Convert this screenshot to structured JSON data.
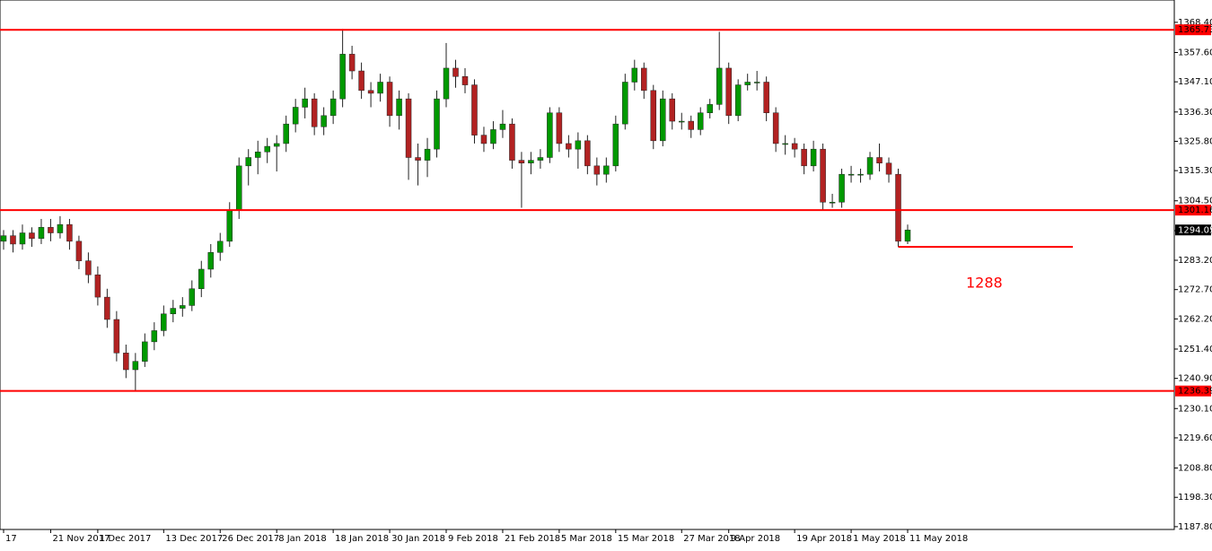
{
  "chart_data": {
    "type": "candlestick",
    "categories": [
      "17",
      null,
      null,
      null,
      null,
      "21 Nov 2017",
      null,
      null,
      null,
      null,
      "1 Dec 2017",
      null,
      null,
      null,
      null,
      null,
      null,
      "13 Dec 2017",
      null,
      null,
      null,
      null,
      null,
      "26 Dec 2017",
      null,
      null,
      null,
      null,
      null,
      "8 Jan 2018",
      null,
      null,
      null,
      null,
      null,
      "18 Jan 2018",
      null,
      null,
      null,
      null,
      null,
      "30 Jan 2018",
      null,
      null,
      null,
      null,
      null,
      "9 Feb 2018",
      null,
      null,
      null,
      null,
      null,
      "21 Feb 2018",
      null,
      null,
      null,
      null,
      null,
      "5 Mar 2018",
      null,
      null,
      null,
      null,
      null,
      "15 Mar 2018",
      null,
      null,
      null,
      null,
      null,
      null,
      "27 Mar 2018",
      null,
      null,
      null,
      null,
      "9 Apr 2018",
      null,
      null,
      null,
      null,
      null,
      null,
      "19 Apr 2018",
      null,
      null,
      null,
      null,
      null,
      "1 May 2018",
      null,
      null,
      null,
      null,
      null,
      "11 May 2018"
    ],
    "ohlc": [
      [
        1290,
        1294,
        1287,
        1292
      ],
      [
        1292,
        1294,
        1286,
        1289
      ],
      [
        1289,
        1296,
        1287,
        1293
      ],
      [
        1293,
        1295,
        1288,
        1291
      ],
      [
        1291,
        1298,
        1289,
        1295
      ],
      [
        1295,
        1298,
        1290,
        1293
      ],
      [
        1293,
        1299,
        1291,
        1296
      ],
      [
        1296,
        1298,
        1287,
        1290
      ],
      [
        1290,
        1292,
        1280,
        1283
      ],
      [
        1283,
        1286,
        1275,
        1278
      ],
      [
        1278,
        1281,
        1267,
        1270
      ],
      [
        1270,
        1273,
        1259,
        1262
      ],
      [
        1262,
        1265,
        1247,
        1250
      ],
      [
        1250,
        1253,
        1241,
        1244
      ],
      [
        1244,
        1250,
        1236.5,
        1247
      ],
      [
        1247,
        1257,
        1245,
        1254
      ],
      [
        1254,
        1261,
        1251,
        1258
      ],
      [
        1258,
        1267,
        1256,
        1264
      ],
      [
        1264,
        1269,
        1261,
        1266
      ],
      [
        1266,
        1270,
        1263,
        1267
      ],
      [
        1267,
        1276,
        1265,
        1273
      ],
      [
        1273,
        1283,
        1270,
        1280
      ],
      [
        1280,
        1289,
        1277,
        1286
      ],
      [
        1286,
        1293,
        1283,
        1290
      ],
      [
        1290,
        1304,
        1288,
        1301
      ],
      [
        1301,
        1320,
        1298,
        1317
      ],
      [
        1317,
        1323,
        1310,
        1320
      ],
      [
        1320,
        1326,
        1314,
        1322
      ],
      [
        1322,
        1327,
        1318,
        1324
      ],
      [
        1324,
        1328,
        1315,
        1325
      ],
      [
        1325,
        1335,
        1322,
        1332
      ],
      [
        1332,
        1341,
        1329,
        1338
      ],
      [
        1338,
        1345,
        1334,
        1341
      ],
      [
        1341,
        1343,
        1328,
        1331
      ],
      [
        1331,
        1338,
        1328,
        1335
      ],
      [
        1335,
        1344,
        1332,
        1341
      ],
      [
        1341,
        1366,
        1338,
        1357
      ],
      [
        1357,
        1360,
        1348,
        1351
      ],
      [
        1351,
        1354,
        1341,
        1344
      ],
      [
        1344,
        1347,
        1338,
        1343
      ],
      [
        1343,
        1350,
        1340,
        1347
      ],
      [
        1347,
        1349,
        1331,
        1335
      ],
      [
        1335,
        1344,
        1330,
        1341
      ],
      [
        1341,
        1343,
        1312,
        1320
      ],
      [
        1320,
        1325,
        1310,
        1319
      ],
      [
        1319,
        1327,
        1313,
        1323
      ],
      [
        1323,
        1344,
        1320,
        1341
      ],
      [
        1341,
        1361,
        1338,
        1352
      ],
      [
        1352,
        1355,
        1345,
        1349
      ],
      [
        1349,
        1352,
        1343,
        1346
      ],
      [
        1346,
        1348,
        1325,
        1328
      ],
      [
        1328,
        1331,
        1322,
        1325
      ],
      [
        1325,
        1333,
        1323,
        1330
      ],
      [
        1330,
        1337,
        1327,
        1332
      ],
      [
        1332,
        1334,
        1316,
        1319
      ],
      [
        1319,
        1322,
        1302,
        1318
      ],
      [
        1318,
        1322,
        1314,
        1319
      ],
      [
        1319,
        1323,
        1316,
        1320
      ],
      [
        1320,
        1338,
        1318,
        1336
      ],
      [
        1336,
        1338,
        1322,
        1325
      ],
      [
        1325,
        1328,
        1320,
        1323
      ],
      [
        1323,
        1329,
        1316,
        1326
      ],
      [
        1326,
        1328,
        1314,
        1317
      ],
      [
        1317,
        1320,
        1310,
        1314
      ],
      [
        1314,
        1320,
        1311,
        1317
      ],
      [
        1317,
        1335,
        1315,
        1332
      ],
      [
        1332,
        1350,
        1330,
        1347
      ],
      [
        1347,
        1355,
        1344,
        1352
      ],
      [
        1352,
        1354,
        1341,
        1344
      ],
      [
        1344,
        1346,
        1323,
        1326
      ],
      [
        1326,
        1344,
        1324,
        1341
      ],
      [
        1341,
        1343,
        1330,
        1333
      ],
      [
        1333,
        1336,
        1330,
        1333
      ],
      [
        1333,
        1335,
        1327,
        1330
      ],
      [
        1330,
        1338,
        1328,
        1336
      ],
      [
        1336,
        1341,
        1334,
        1339
      ],
      [
        1339,
        1365,
        1337,
        1352
      ],
      [
        1352,
        1354,
        1332,
        1335
      ],
      [
        1335,
        1348,
        1333,
        1346
      ],
      [
        1346,
        1350,
        1344,
        1347
      ],
      [
        1347,
        1351,
        1344,
        1347
      ],
      [
        1347,
        1349,
        1333,
        1336
      ],
      [
        1336,
        1338,
        1322,
        1325
      ],
      [
        1325,
        1328,
        1321,
        1325
      ],
      [
        1325,
        1327,
        1320,
        1323
      ],
      [
        1323,
        1325,
        1314,
        1317
      ],
      [
        1317,
        1326,
        1315,
        1323
      ],
      [
        1323,
        1325,
        1301,
        1304
      ],
      [
        1304,
        1307,
        1302,
        1304
      ],
      [
        1304,
        1316,
        1302,
        1314
      ],
      [
        1314,
        1317,
        1311,
        1314
      ],
      [
        1314,
        1316,
        1311,
        1314
      ],
      [
        1314,
        1322,
        1312,
        1320
      ],
      [
        1320,
        1325,
        1315,
        1318
      ],
      [
        1318,
        1320,
        1311,
        1314
      ],
      [
        1314,
        1316,
        1288,
        1290
      ],
      [
        1290,
        1296,
        1289,
        1294.05
      ]
    ],
    "up_color": "#009900",
    "down_color": "#b22222",
    "wick_color": "#222222",
    "ylim": [
      1186.8,
      1376.4
    ],
    "yticks": [
      {
        "value": 1368.4,
        "label": "1368.40"
      },
      {
        "value": 1357.6,
        "label": "1357.60"
      },
      {
        "value": 1347.1,
        "label": "1347.10"
      },
      {
        "value": 1336.3,
        "label": "1336.30"
      },
      {
        "value": 1325.8,
        "label": "1325.80"
      },
      {
        "value": 1315.3,
        "label": "1315.30"
      },
      {
        "value": 1304.5,
        "label": "1304.50"
      },
      {
        "value": 1293.8,
        "label": "1293.80"
      },
      {
        "value": 1283.2,
        "label": "1283.20"
      },
      {
        "value": 1272.7,
        "label": "1272.70"
      },
      {
        "value": 1262.2,
        "label": "1262.20"
      },
      {
        "value": 1251.4,
        "label": "1251.40"
      },
      {
        "value": 1240.9,
        "label": "1240.90"
      },
      {
        "value": 1230.1,
        "label": "1230.10"
      },
      {
        "value": 1219.6,
        "label": "1219.60"
      },
      {
        "value": 1208.8,
        "label": "1208.80"
      },
      {
        "value": 1198.3,
        "label": "1198.30"
      },
      {
        "value": 1187.8,
        "label": "1187.80"
      }
    ],
    "levels": [
      1365.73,
      1301.16,
      1236.39
    ],
    "level_color": "#ff0000",
    "target": 1288,
    "last_price": 1294.05
  }
}
